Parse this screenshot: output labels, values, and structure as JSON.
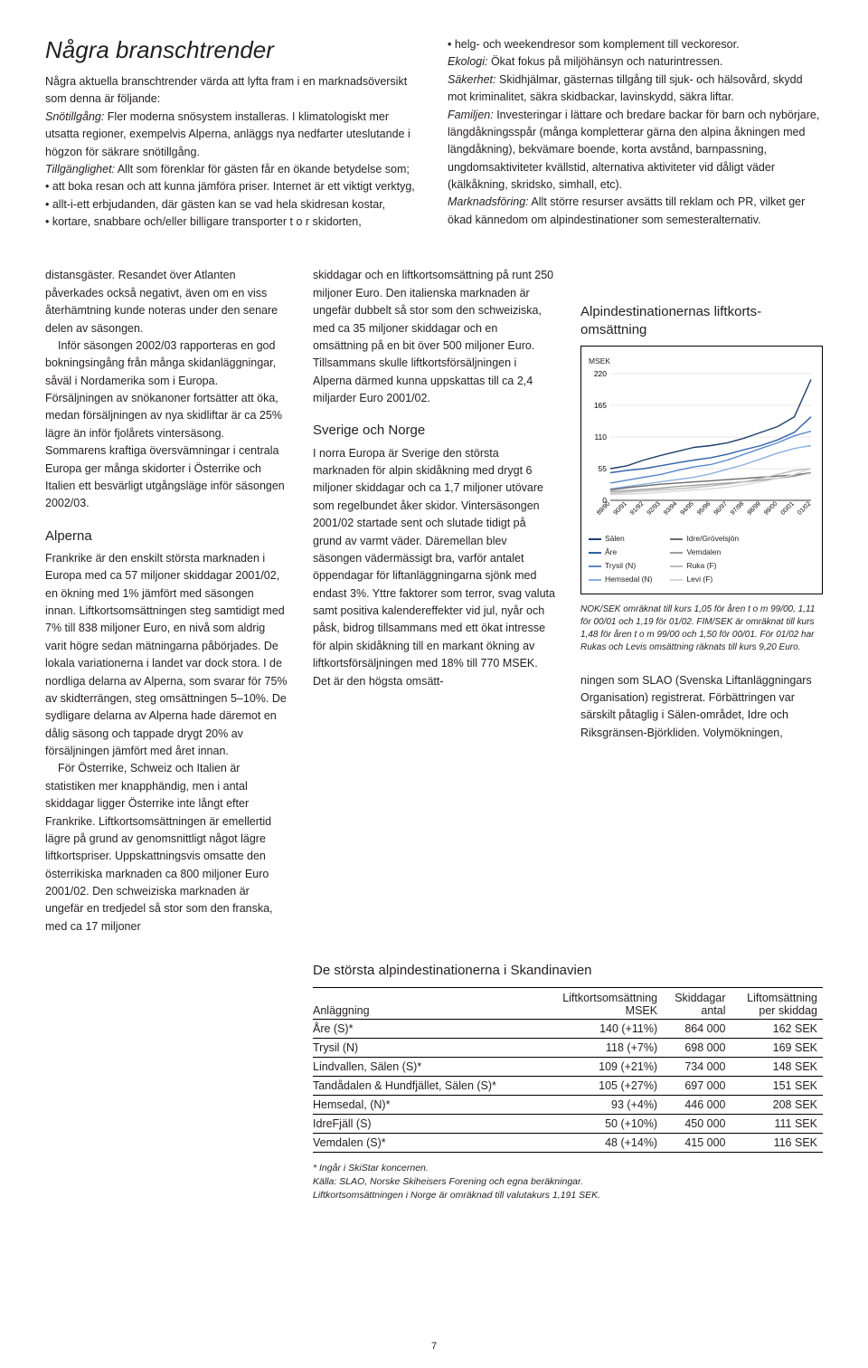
{
  "top": {
    "headline": "Några branschtrender",
    "intro_lead": "Några aktuella branschtrender värda att lyfta fram i en marknadsöversikt som denna är följande:",
    "snot_label": "Snötillgång:",
    "snot_text": " Fler moderna snösystem installeras. I klimatologiskt mer utsatta regioner, exempelvis Alperna, anläggs nya nedfarter uteslutande i högzon för säkrare snötillgång.",
    "till_label": "Tillgänglighet:",
    "till_text": " Allt som förenklar för gästen får en ökande betydelse som;",
    "bullets": [
      "att boka resan och att kunna jämföra priser. Internet är ett viktigt verktyg,",
      "allt-i-ett erbjudanden, där gästen kan se vad hela skidresan kostar,",
      "kortare, snabbare och/eller billigare transporter t o r skidorten,"
    ],
    "r_bullet": "helg- och weekendresor som komplement till veckoresor.",
    "terms": [
      {
        "label": "Ekologi:",
        "text": " Ökat fokus på miljöhänsyn och naturintressen."
      },
      {
        "label": "Säkerhet:",
        "text": " Skidhjälmar, gästernas tillgång till sjuk- och hälsovård, skydd mot kriminalitet, säkra skidbackar, lavinskydd, säkra liftar."
      },
      {
        "label": "Familjen:",
        "text": " Investeringar i lättare och bredare backar för barn och nybörjare, längdåkningsspår (många kompletterar gärna den alpina åkningen med längdåkning), bekvämare boende, korta avstånd, barnpassning, ungdomsaktiviteter kvällstid, alternativa aktiviteter vid dåligt väder (kälkåkning, skridsko, simhall, etc)."
      },
      {
        "label": "Marknadsföring:",
        "text": " Allt större resurser avsätts till reklam och PR, vilket ger ökad kännedom om alpindestinationer som semester­alternativ."
      }
    ]
  },
  "col1": {
    "p1": "distansgäster. Resandet över Atlanten påverkades också negativt, även om en viss återhämtning kunde noteras under den senare delen av säsongen.",
    "p2": "Inför säsongen 2002/03 rapporteras en god bokningsingång från många skid­anläggningar, såväl i Nordamerika som i Europa. Försäljningen av snökanoner fort­sätter att öka, medan försäljningen av nya skidliftar är ca 25% lägre än inför fjolårets vintersäsong. Sommarens kraftiga över­svämningar i centrala Europa ger många skidorter i Österrike och Italien ett besvärligt utgångsläge inför säsongen 2002/03.",
    "h_alperna": "Alperna",
    "p3": "Frankrike är den enskilt största marknaden i Europa med ca 57 miljoner skiddagar 2001/02, en ökning med 1% jämfört med säsongen innan. Liftkortsomsättningen steg samtidigt med 7% till 838 miljoner Euro, en nivå som aldrig varit högre sedan mätningarna påbörjades. De lokala varia­tionerna i landet var dock stora. I de nord­liga delarna av Alperna, som svarar för 75% av skidterrängen, steg omsättningen 5–10%. De sydligare delarna av Alperna hade däremot en dålig säsong och tappa­de drygt 20% av försäljningen jämfört med året innan.",
    "p4": "För Österrike, Schweiz och Italien är statistiken mer knapphändig, men i antal skiddagar ligger Österrike inte långt efter Frankrike. Liftkortsomsättningen är emel­lertid lägre på grund av genomsnittligt något lägre liftkortspriser. Uppskattningsvis omsatte den österrikiska marknaden ca 800 miljoner Euro 2001/02. Den schweiz­iska marknaden är ungefär en tredjedel så stor som den franska, med ca 17 miljoner"
  },
  "col2": {
    "p1": "skiddagar och en liftkortsomsättning på runt 250 miljoner Euro. Den italienska marknaden är ungefär dubbelt så stor som den schweiziska, med ca 35 miljoner skid­dagar och en omsättning på en bit över 500 miljoner Euro. Tillsammans skulle lift­kortsförsäljningen i Alperna därmed kunna uppskattas till ca 2,4 miljarder Euro 2001/02.",
    "h_sn": "Sverige och Norge",
    "p2": "I norra Europa är Sverige den största marknaden för alpin skidåkning med drygt 6 miljoner skiddagar och ca 1,7 miljoner utövare som regelbundet åker skidor. Vintersäsongen 2001/02 startade sent och slutade tidigt på grund av varmt väder. Däremellan blev säsongen vädermässigt bra, varför antalet öppendagar för lift­anläggningarna sjönk med endast 3%. Yttre faktorer som terror, svag valuta samt positiva kalendereffekter vid jul, nyår och påsk, bidrog tillsammans med ett ökat intresse för alpin skidåkning till en markant ökning av liftkortsförsäljningen med 18% till 770 MSEK. Det är den högsta omsätt-"
  },
  "col3_tail": {
    "p": "ningen som SLAO (Svenska Liftanläggning­ars Organisation) registrerat. Förbättringen var särskilt påtaglig i Sälen-området, Idre och Riksgränsen-Björkliden. Volymökningen,"
  },
  "chart": {
    "title": "Alpindestinationernas liftkorts­omsättning",
    "ylabel": "MSEK",
    "yticks": [
      220,
      165,
      110,
      55,
      0
    ],
    "xticks": [
      "89/90",
      "90/91",
      "91/92",
      "92/93",
      "93/94",
      "94/95",
      "95/96",
      "96/97",
      "97/98",
      "98/99",
      "99/00",
      "00/01",
      "01/02"
    ],
    "series": [
      {
        "name": "Sälen",
        "color": "#1f3f6b",
        "values": [
          55,
          60,
          70,
          78,
          85,
          92,
          95,
          100,
          108,
          118,
          128,
          145,
          210
        ]
      },
      {
        "name": "Åre",
        "color": "#2f5fa8",
        "values": [
          48,
          52,
          55,
          60,
          65,
          70,
          74,
          80,
          88,
          95,
          105,
          118,
          145
        ]
      },
      {
        "name": "Trysil (N)",
        "color": "#5a88c9",
        "values": [
          30,
          35,
          40,
          45,
          52,
          58,
          62,
          70,
          80,
          90,
          100,
          112,
          120
        ]
      },
      {
        "name": "Hemsedal (N)",
        "color": "#8cb0de",
        "values": [
          20,
          24,
          28,
          32,
          36,
          40,
          46,
          54,
          62,
          72,
          82,
          90,
          95
        ]
      },
      {
        "name": "Idre/Grövelsjön",
        "color": "#6b6b6b",
        "values": [
          18,
          22,
          25,
          28,
          30,
          32,
          34,
          36,
          38,
          40,
          42,
          44,
          48
        ]
      },
      {
        "name": "Vemdalen",
        "color": "#9d9d9d",
        "values": [
          15,
          17,
          19,
          21,
          24,
          26,
          28,
          30,
          32,
          35,
          38,
          42,
          48
        ]
      },
      {
        "name": "Ruka (F)",
        "color": "#bcbcbc",
        "values": [
          12,
          14,
          16,
          18,
          20,
          22,
          25,
          28,
          32,
          38,
          45,
          52,
          55
        ]
      },
      {
        "name": "Levi (F)",
        "color": "#d8d8d8",
        "values": [
          10,
          11,
          12,
          14,
          16,
          18,
          20,
          23,
          27,
          32,
          38,
          45,
          55
        ]
      }
    ],
    "ylim": [
      0,
      220
    ],
    "caption": "NOK/SEK omräknat till kurs 1,05 för åren t o m 99/00, 1,11 för 00/01 och 1,19 för 01/02. FIM/SEK är om­räknat till kurs 1,48 för åren t o m 99/00 och 1,50 för 00/01. För 01/02 har Rukas och Levis omsättning räknats till kurs 9,20 Euro."
  },
  "table": {
    "title": "De största alpindestinationerna i Skandinavien",
    "columns": [
      "Anläggning",
      "Liftkortsomsättning\nMSEK",
      "Skiddagar\nantal",
      "Liftomsättning\nper skiddag"
    ],
    "rows": [
      [
        "Åre (S)*",
        "140 (+11%)",
        "864 000",
        "162 SEK"
      ],
      [
        "Trysil (N)",
        "118  (+7%)",
        "698 000",
        "169 SEK"
      ],
      [
        "Lindvallen, Sälen (S)*",
        "109 (+21%)",
        "734 000",
        "148 SEK"
      ],
      [
        "Tandådalen & Hundfjället, Sälen (S)*",
        "105 (+27%)",
        "697 000",
        "151 SEK"
      ],
      [
        "Hemsedal, (N)*",
        "93  (+4%)",
        "446 000",
        "208 SEK"
      ],
      [
        "IdreFjäll (S)",
        "50 (+10%)",
        "450 000",
        "111 SEK"
      ],
      [
        "Vemdalen (S)*",
        "48 (+14%)",
        "415 000",
        "116 SEK"
      ]
    ],
    "footnote": "* Ingår i SkiStar koncernen.\nKälla: SLAO, Norske Skiheisers Forening och egna beräkningar.\nLiftkortsomsättningen i Norge är omräknad till valutakurs 1,191 SEK."
  },
  "pagenum": "7"
}
